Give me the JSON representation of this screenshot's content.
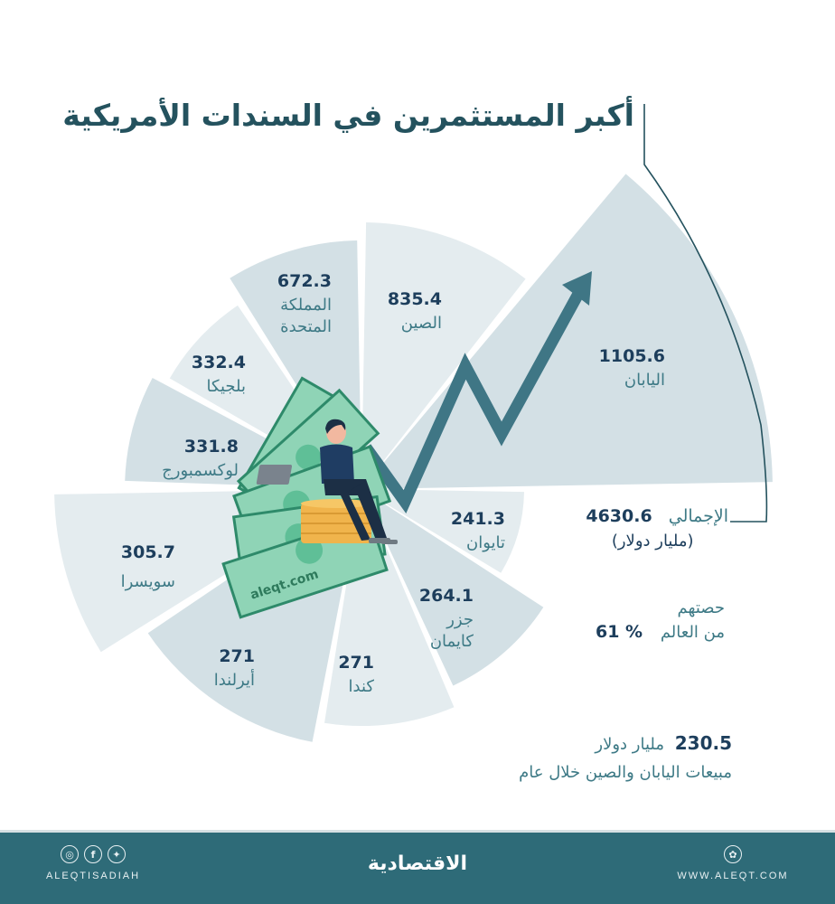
{
  "title": "أكبر المستثمرين في السندات الأمريكية",
  "colors": {
    "wedge_dark": "#d3e0e5",
    "wedge_light": "#e4ecef",
    "arrow": "#3f7685",
    "value_text": "#1d3e5c",
    "label_text": "#3e7a86",
    "title_text": "#24525e",
    "footer_bg": "#2e6b78"
  },
  "chart_data": {
    "type": "radial-bar",
    "title": "أكبر المستثمرين في السندات الأمريكية",
    "unit": "مليار دولار",
    "categories": [
      "اليابان",
      "الصين",
      "المملكة المتحدة",
      "بلجيكا",
      "لوكسمبورج",
      "سويسرا",
      "أيرلندا",
      "كندا",
      "جزر كايمان",
      "تايوان"
    ],
    "values": [
      1105.6,
      835.4,
      672.3,
      332.4,
      331.8,
      305.7,
      271,
      271,
      264.1,
      241.3
    ],
    "total": 4630.6,
    "world_share_percent": 61,
    "japan_china_sales_one_year": 230.5
  },
  "segments": [
    {
      "name": "اليابان",
      "value": "1105.6"
    },
    {
      "name": "الصين",
      "value": "835.4"
    },
    {
      "name": "المملكة المتحدة",
      "name_l1": "المملكة",
      "name_l2": "المتحدة",
      "value": "672.3"
    },
    {
      "name": "بلجيكا",
      "value": "332.4"
    },
    {
      "name": "لوكسمبورج",
      "value": "331.8"
    },
    {
      "name": "سويسرا",
      "value": "305.7"
    },
    {
      "name": "أيرلندا",
      "value": "271"
    },
    {
      "name": "كندا",
      "value": "271"
    },
    {
      "name": "جزر كايمان",
      "name_l1": "جزر",
      "name_l2": "كايمان",
      "value": "264.1"
    },
    {
      "name": "تايوان",
      "value": "241.3"
    }
  ],
  "summary": {
    "total_label": "الإجمالي",
    "total_value": "4630.6",
    "total_unit": "(مليار دولار)",
    "share_label_l1": "حصتهم",
    "share_label_l2": "من العالم",
    "share_value": "61 %",
    "sales_value": "230.5",
    "sales_unit": "مليار دولار",
    "sales_desc": "مبيعات اليابان والصين خلال عام"
  },
  "illustration": {
    "watermark": "aleqt.com"
  },
  "footer": {
    "social_handle": "ALEQTISADIAH",
    "brand": "الاقتصادية",
    "website": "WWW.ALEQT.COM",
    "icons": [
      "instagram-icon",
      "facebook-icon",
      "twitter-icon",
      "web-icon"
    ]
  }
}
